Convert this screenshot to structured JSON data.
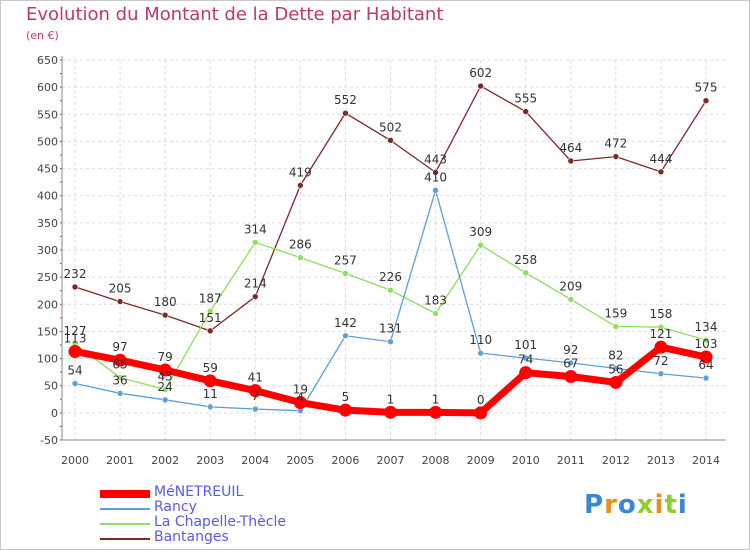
{
  "title": "Evolution du Montant de la Dette par Habitant",
  "unit": "(en €)",
  "logo": "Proxiti",
  "chart_data": {
    "type": "line",
    "title": "Evolution du Montant de la Dette par Habitant",
    "ylabel": "(en €)",
    "x": [
      "2000",
      "2001",
      "2002",
      "2003",
      "2004",
      "2005",
      "2006",
      "2007",
      "2008",
      "2009",
      "2010",
      "2011",
      "2012",
      "2013",
      "2014"
    ],
    "ylim": [
      -50,
      650
    ],
    "yticks": [
      "-50",
      "0",
      "50",
      "100",
      "150",
      "200",
      "250",
      "300",
      "350",
      "400",
      "450",
      "500",
      "550",
      "600",
      "650"
    ],
    "grid": true,
    "legend_position": "bottom-left",
    "series": [
      {
        "name": "MéNETREUIL",
        "color": "#ff0000",
        "values": [
          113,
          97,
          79,
          59,
          41,
          19,
          5,
          1,
          1,
          0,
          74,
          67,
          56,
          121,
          103
        ],
        "labels": [
          "113",
          "97",
          "79",
          "59",
          "41",
          "19",
          "5",
          "1",
          "1",
          "0",
          "74",
          "67",
          "56",
          "121",
          "103"
        ]
      },
      {
        "name": "Rancy",
        "color": "#5f9fd6",
        "values": [
          54,
          36,
          24,
          11,
          7,
          4,
          142,
          131,
          410,
          110,
          101,
          92,
          82,
          72,
          64
        ],
        "labels": [
          "54",
          "36",
          "24",
          "11",
          "7",
          "4",
          "142",
          "131",
          "410",
          "110",
          "101",
          "92",
          "82",
          "72",
          "64"
        ]
      },
      {
        "name": "La Chapelle-Thècle",
        "color": "#90dd60",
        "values": [
          127,
          65,
          43,
          187,
          314,
          286,
          257,
          226,
          183,
          309,
          258,
          209,
          159,
          158,
          134
        ],
        "labels": [
          "127",
          "65",
          "43",
          "187",
          "314",
          "286",
          "257",
          "226",
          "183",
          "309",
          "258",
          "209",
          "159",
          "158",
          "134"
        ]
      },
      {
        "name": "Bantanges",
        "color": "#7a2a2a",
        "values": [
          232,
          205,
          180,
          151,
          214,
          419,
          552,
          502,
          443,
          602,
          555,
          464,
          472,
          444,
          575
        ],
        "labels": [
          "232",
          "205",
          "180",
          "151",
          "214",
          "419",
          "552",
          "502",
          "443",
          "602",
          "555",
          "464",
          "472",
          "444",
          "575"
        ]
      }
    ]
  }
}
